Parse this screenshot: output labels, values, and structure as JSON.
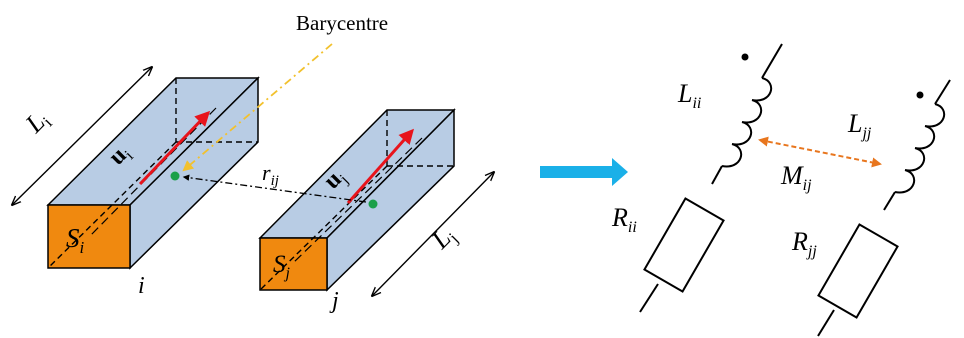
{
  "labels": {
    "barycentre": "Barycentre",
    "L_i": "L",
    "L_i_sub": "i",
    "u_i": "u",
    "u_i_sub": "i",
    "r_ij": "r",
    "r_ij_sub": "ij",
    "u_j": "u",
    "u_j_sub": "j",
    "L_j": "L",
    "L_j_sub": "j",
    "S_i": "S",
    "S_i_sub": "i",
    "S_j": "S",
    "S_j_sub": "j",
    "i": "i",
    "j": "j",
    "L_ii": "L",
    "L_ii_sub": "ii",
    "L_jj": "L",
    "L_jj_sub": "jj",
    "M_ij": "M",
    "M_ij_sub": "ij",
    "R_ii": "R",
    "R_ii_sub": "ii",
    "R_jj": "R",
    "R_jj_sub": "jj"
  },
  "colors": {
    "box_face": "#b8cce4",
    "cross_section": "#f0890f",
    "current_vector": "#e8141c",
    "barycentre_dot": "#1ca04a",
    "barycentre_arrow": "#f2c12e",
    "big_arrow": "#1ab0e8",
    "mutual_arrow": "#e8761e",
    "stroke": "#000000"
  }
}
